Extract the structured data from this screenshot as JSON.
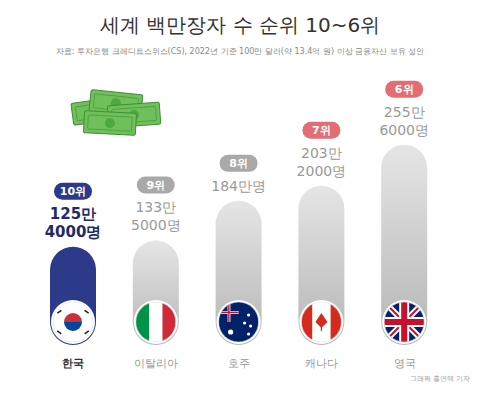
{
  "chart_data": {
    "type": "bar",
    "title": "세계 백만장자 수 순위 10~6위",
    "subtitle": "자료: 투자은행 크레디트스위스(CS), 2022년 기준 100만 달러(약 13.4억 원) 이상 금융자산 보유 성인",
    "categories": [
      "한국",
      "이탈리아",
      "호주",
      "캐나다",
      "영국"
    ],
    "ranks": [
      "10위",
      "9위",
      "8위",
      "7위",
      "6위"
    ],
    "values": [
      1254000,
      1335000,
      1840000,
      2032000,
      2556000
    ],
    "value_labels": [
      "125만 4000명",
      "133만 5000명",
      "184만명",
      "203만 2000명",
      "255만 6000명"
    ],
    "colors": [
      "#2d3a8a",
      "#b5b5b5",
      "#b5b5b5",
      "#b5b5b5",
      "#b5b5b5"
    ],
    "ylim": [
      0,
      3000000
    ],
    "data_labels": true,
    "tick_labels": "x",
    "annotations": [
      "그래픽 홍연택 기자"
    ]
  }
}
